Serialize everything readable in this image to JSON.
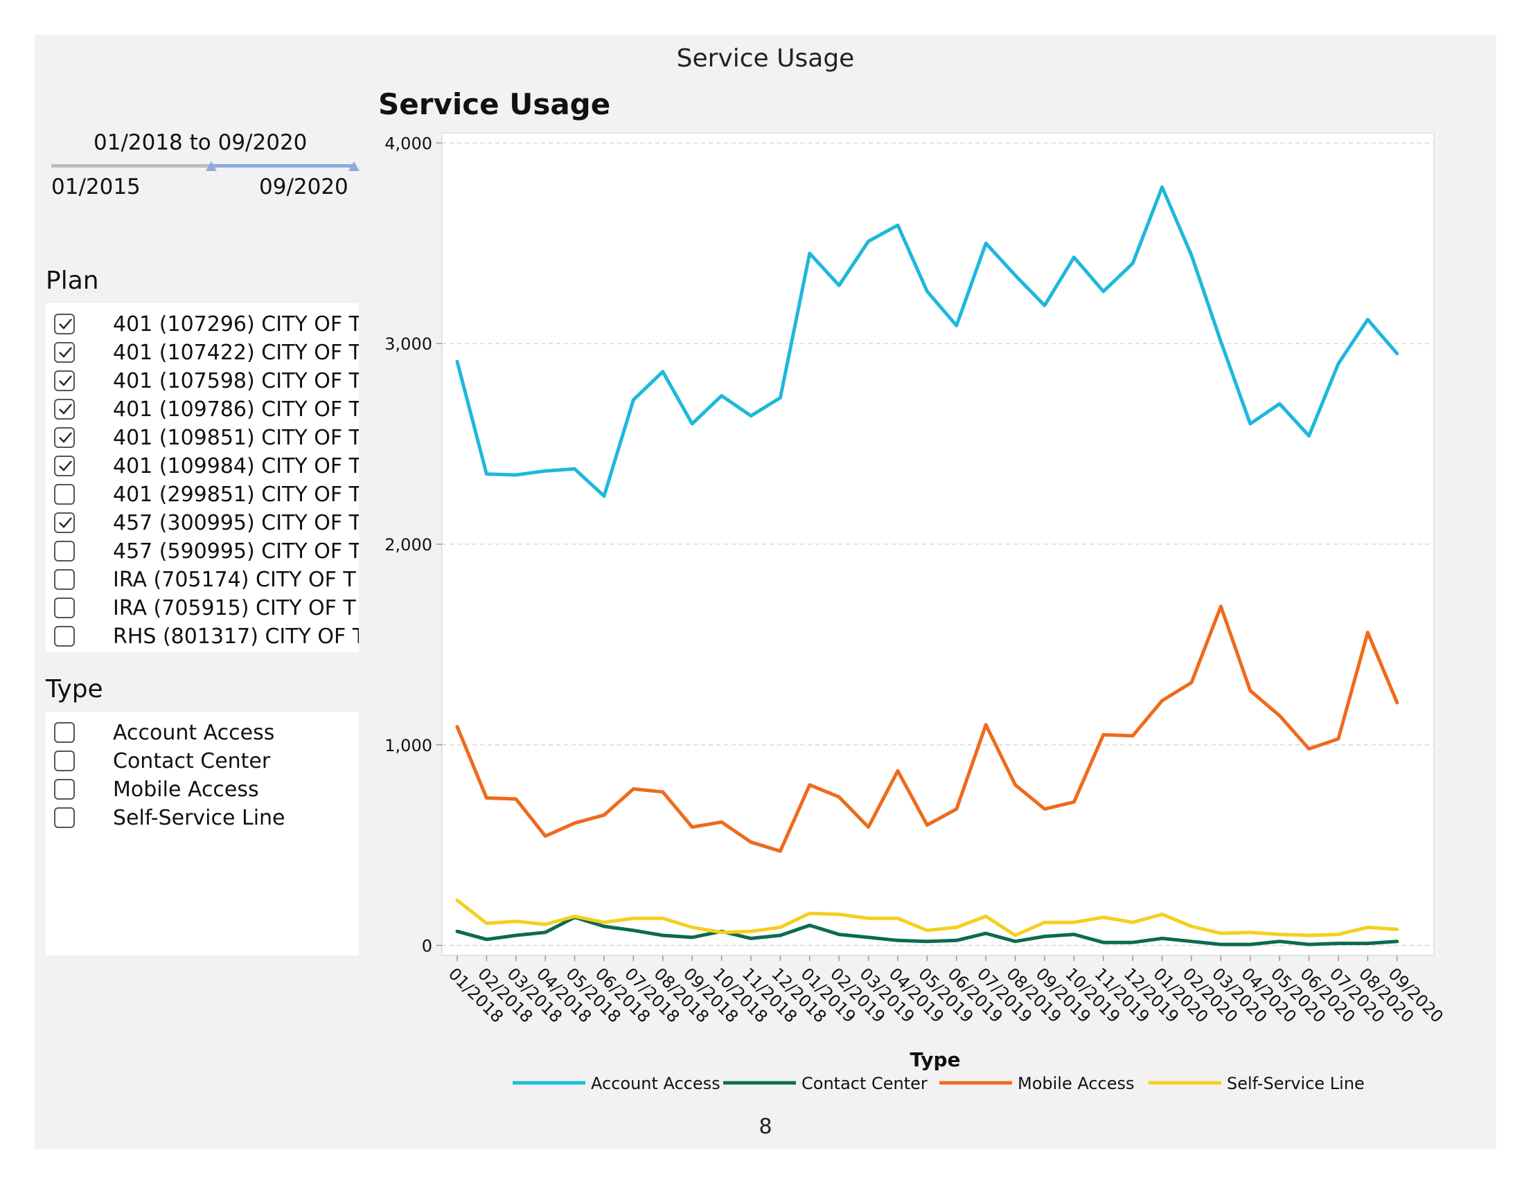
{
  "page": {
    "title": "Service Usage",
    "page_number": "8"
  },
  "slider": {
    "range_text": "01/2018 to 09/2020",
    "min_label": "01/2015",
    "max_label": "09/2020"
  },
  "plan_filter": {
    "heading": "Plan",
    "items": [
      {
        "label": "401 (107296) CITY OF T",
        "checked": true
      },
      {
        "label": "401 (107422) CITY OF T",
        "checked": true
      },
      {
        "label": "401 (107598) CITY OF T",
        "checked": true
      },
      {
        "label": "401 (109786) CITY OF T",
        "checked": true
      },
      {
        "label": "401 (109851) CITY OF T",
        "checked": true
      },
      {
        "label": "401 (109984) CITY OF T",
        "checked": true
      },
      {
        "label": "401 (299851) CITY OF T",
        "checked": false
      },
      {
        "label": "457 (300995) CITY OF T",
        "checked": true
      },
      {
        "label": "457 (590995) CITY OF T",
        "checked": false
      },
      {
        "label": "IRA (705174) CITY OF T",
        "checked": false
      },
      {
        "label": "IRA (705915) CITY OF T",
        "checked": false
      },
      {
        "label": "RHS (801317) CITY OF T",
        "checked": false
      }
    ]
  },
  "type_filter": {
    "heading": "Type",
    "items": [
      {
        "label": "Account Access",
        "checked": false
      },
      {
        "label": "Contact Center",
        "checked": false
      },
      {
        "label": "Mobile Access",
        "checked": false
      },
      {
        "label": "Self-Service Line",
        "checked": false
      }
    ]
  },
  "chart_data": {
    "type": "line",
    "title": "Service Usage",
    "xlabel": "",
    "ylabel": "",
    "ylim": [
      -50,
      4050
    ],
    "yticks": [
      0,
      1000,
      2000,
      3000,
      4000
    ],
    "ytick_labels": [
      "0",
      "1,000",
      "2,000",
      "3,000",
      "4,000"
    ],
    "grid": "horizontal dashed",
    "legend_title": "Type",
    "legend_position": "bottom",
    "x": [
      "01/2018",
      "02/2018",
      "03/2018",
      "04/2018",
      "05/2018",
      "06/2018",
      "07/2018",
      "08/2018",
      "09/2018",
      "10/2018",
      "11/2018",
      "12/2018",
      "01/2019",
      "02/2019",
      "03/2019",
      "04/2019",
      "05/2019",
      "06/2019",
      "07/2019",
      "08/2019",
      "09/2019",
      "10/2019",
      "11/2019",
      "12/2019",
      "01/2020",
      "02/2020",
      "03/2020",
      "04/2020",
      "05/2020",
      "06/2020",
      "07/2020",
      "08/2020",
      "09/2020"
    ],
    "series": [
      {
        "name": "Account Access",
        "color": "#1db8dc",
        "values": [
          2910,
          2350,
          2345,
          2365,
          2375,
          2240,
          2720,
          2860,
          2600,
          2740,
          2640,
          2730,
          3450,
          3290,
          3510,
          3590,
          3260,
          3090,
          3500,
          3340,
          3190,
          3430,
          3260,
          3400,
          3780,
          3440,
          3010,
          2600,
          2700,
          2540,
          2900,
          3120,
          2950
        ]
      },
      {
        "name": "Contact Center",
        "color": "#0b6b4f",
        "values": [
          70,
          30,
          50,
          65,
          140,
          95,
          75,
          50,
          40,
          70,
          35,
          50,
          100,
          55,
          40,
          25,
          20,
          25,
          60,
          20,
          45,
          55,
          15,
          15,
          35,
          20,
          5,
          5,
          20,
          5,
          10,
          10,
          20
        ]
      },
      {
        "name": "Mobile Access",
        "color": "#ef6a1c",
        "values": [
          1090,
          735,
          730,
          545,
          610,
          650,
          780,
          765,
          590,
          615,
          515,
          470,
          800,
          740,
          590,
          870,
          600,
          680,
          1100,
          800,
          680,
          715,
          1050,
          1045,
          1220,
          1310,
          1690,
          1270,
          1145,
          980,
          1030,
          1560,
          1210
        ]
      },
      {
        "name": "Self-Service Line",
        "color": "#f5cf21",
        "values": [
          225,
          110,
          120,
          105,
          145,
          115,
          135,
          135,
          90,
          65,
          70,
          90,
          160,
          155,
          135,
          135,
          75,
          90,
          145,
          50,
          115,
          115,
          140,
          115,
          155,
          95,
          60,
          65,
          55,
          50,
          55,
          90,
          80
        ]
      }
    ]
  }
}
